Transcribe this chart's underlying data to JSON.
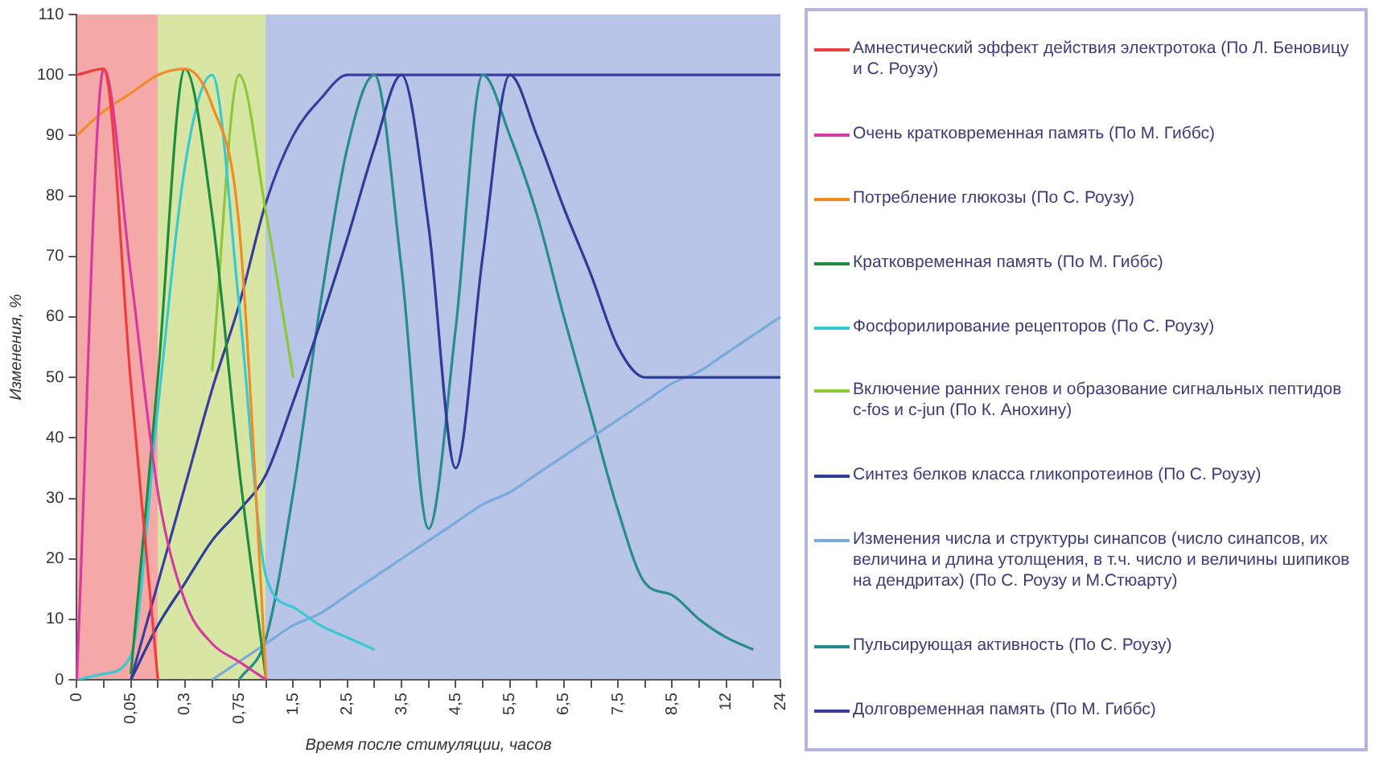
{
  "chart_data": {
    "type": "line",
    "xlabel": "Время после стимуляции, часов",
    "ylabel": "Изменения, %",
    "categories": [
      "0",
      null,
      "0,05",
      null,
      "0,3",
      null,
      "0,75",
      null,
      "1,5",
      null,
      "2,5",
      null,
      "3,5",
      null,
      "4,5",
      null,
      "5,5",
      null,
      "6,5",
      null,
      "7,5",
      null,
      "8,5",
      null,
      "12",
      null,
      "24"
    ],
    "ylim": [
      0,
      110
    ],
    "yticks": [
      0,
      10,
      20,
      30,
      40,
      50,
      60,
      70,
      80,
      90,
      100,
      110
    ],
    "grid": false,
    "legend": "right",
    "marker": "none",
    "line_style": "solid",
    "series": [
      {
        "name": "Амнестический эффект действия электротока (По Л. Беновицу и С. Роузу)",
        "color": "#f03c3c",
        "values": [
          100,
          101,
          49,
          0,
          null,
          null,
          null,
          null,
          null,
          null,
          null,
          null,
          null,
          null,
          null,
          null,
          null,
          null,
          null,
          null,
          null,
          null,
          null,
          null,
          null,
          null,
          null
        ]
      },
      {
        "name": "Очень кратковременная память (По М. Гиббс)",
        "color": "#d63ca0",
        "values": [
          0,
          101,
          67,
          31,
          13,
          6,
          3,
          0,
          null,
          null,
          null,
          null,
          null,
          null,
          null,
          null,
          null,
          null,
          null,
          null,
          null,
          null,
          null,
          null,
          null,
          null,
          null
        ]
      },
      {
        "name": "Потребление глюкозы (По С. Роузу)",
        "color": "#f08c28",
        "values": [
          90,
          94,
          97,
          100,
          101,
          95,
          75,
          0,
          null,
          null,
          null,
          null,
          null,
          null,
          null,
          null,
          null,
          null,
          null,
          null,
          null,
          null,
          null,
          null,
          null,
          null,
          null
        ]
      },
      {
        "name": "Кратковременная память (По М. Гиббс)",
        "color": "#1e8c3c",
        "values": [
          null,
          null,
          1,
          50,
          101,
          77,
          35,
          0,
          null,
          null,
          null,
          null,
          null,
          null,
          null,
          null,
          null,
          null,
          null,
          null,
          null,
          null,
          null,
          null,
          null,
          null,
          null
        ]
      },
      {
        "name": "Фосфорилирование рецепторов (По С. Роузу)",
        "color": "#3cc8d2",
        "values": [
          0,
          1,
          4,
          45,
          85,
          100,
          62,
          17,
          12,
          9,
          7,
          5,
          null,
          null,
          null,
          null,
          null,
          null,
          null,
          null,
          null,
          null,
          null,
          null,
          null,
          null,
          null
        ]
      },
      {
        "name": "Включение ранних генов и образование сигнальных пептидов c-fos и c-jun (По К. Анохину)",
        "color": "#8cc83c",
        "values": [
          null,
          null,
          null,
          null,
          null,
          51,
          100,
          77,
          50,
          null,
          null,
          null,
          null,
          null,
          null,
          null,
          null,
          null,
          null,
          null,
          null,
          null,
          null,
          null,
          null,
          null,
          null
        ]
      },
      {
        "name": "Синтез белков класса гликопротеинов (По С. Роузу)",
        "color": "#2d3c96",
        "values": [
          null,
          null,
          0,
          9,
          16,
          23,
          28,
          34,
          46,
          59,
          73,
          88,
          100,
          75,
          35,
          70,
          100,
          90,
          78,
          67,
          55,
          50,
          50,
          50,
          50,
          50,
          50
        ]
      },
      {
        "name": "Изменения числа и структуры синапсов (число синапсов, их величина и длина утолщения, в т.ч. число и величины шипиков на дендритах) (По С. Роузу и М.Стюарту)",
        "color": "#78aadc",
        "values": [
          null,
          null,
          null,
          null,
          null,
          0,
          3,
          6,
          9,
          11,
          14,
          17,
          20,
          23,
          26,
          29,
          31,
          34,
          37,
          40,
          43,
          46,
          49,
          51,
          54,
          57,
          60
        ]
      },
      {
        "name": "Пульсирующая активность (По С. Роузу)",
        "color": "#288c8c",
        "values": [
          null,
          null,
          null,
          null,
          null,
          null,
          0,
          7,
          31,
          62,
          88,
          100,
          68,
          25,
          58,
          100,
          90,
          77,
          60,
          44,
          28,
          16,
          14,
          10,
          7,
          5,
          null
        ]
      },
      {
        "name": "Долговременная память (По М. Гиббс)",
        "color": "#3c3ca0",
        "values": [
          null,
          null,
          0,
          16,
          32,
          48,
          62,
          79,
          90,
          96,
          100,
          100,
          100,
          100,
          100,
          100,
          100,
          100,
          100,
          100,
          100,
          100,
          100,
          100,
          100,
          100,
          100
        ]
      }
    ]
  }
}
